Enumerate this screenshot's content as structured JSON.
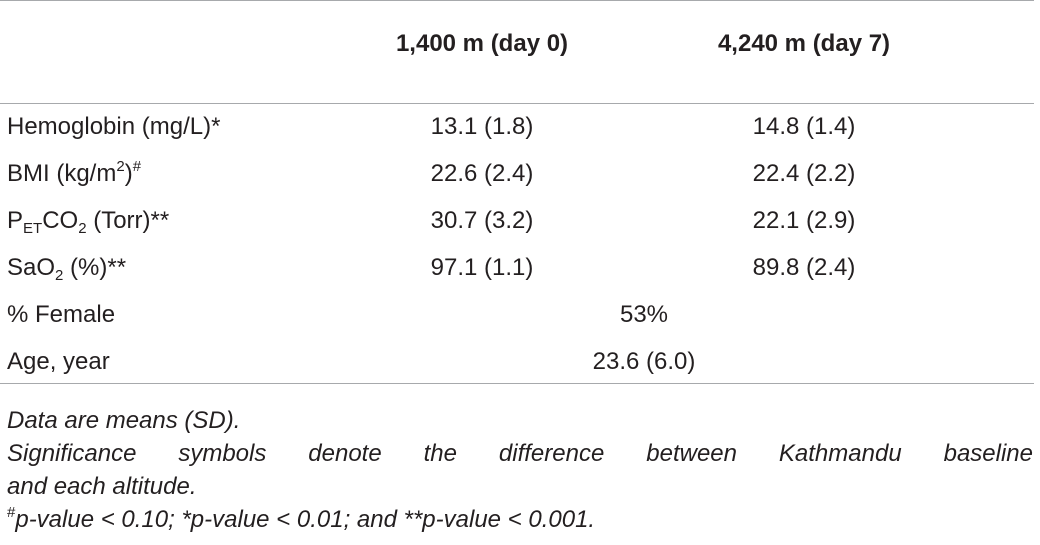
{
  "header": {
    "col1": "1,400 m (day 0)",
    "col2": "4,240 m (day 7)"
  },
  "rows": [
    {
      "label": "Hemoglobin (mg/L)*",
      "v1": "13.1 (1.8)",
      "v2": "14.8 (1.4)"
    },
    {
      "label_pre": "BMI (kg/m",
      "label_sup": "2",
      "label_post": ")",
      "label_mark": "#",
      "v1": "22.6 (2.4)",
      "v2": "22.4 (2.2)"
    },
    {
      "label_p": "P",
      "label_sub": "ET",
      "label_co": "CO",
      "label_sub2": "2",
      "label_post": " (Torr)**",
      "v1": "30.7 (3.2)",
      "v2": "22.1 (2.9)"
    },
    {
      "label_pre": "SaO",
      "label_sub": "2",
      "label_post": " (%)**",
      "v1": "97.1 (1.1)",
      "v2": "89.8 (2.4)"
    },
    {
      "label": "% Female",
      "span": "53%"
    },
    {
      "label": "Age, year",
      "span": "23.6 (6.0)"
    }
  ],
  "notes": {
    "line1": "Data are means (SD).",
    "line2a": "Significance symbols denote the difference between Kathmandu baseline",
    "line2b": "and each altitude.",
    "line3_mark": "#",
    "line3": "p-value < 0.10; *p-value < 0.01; and **p-value < 0.001."
  }
}
